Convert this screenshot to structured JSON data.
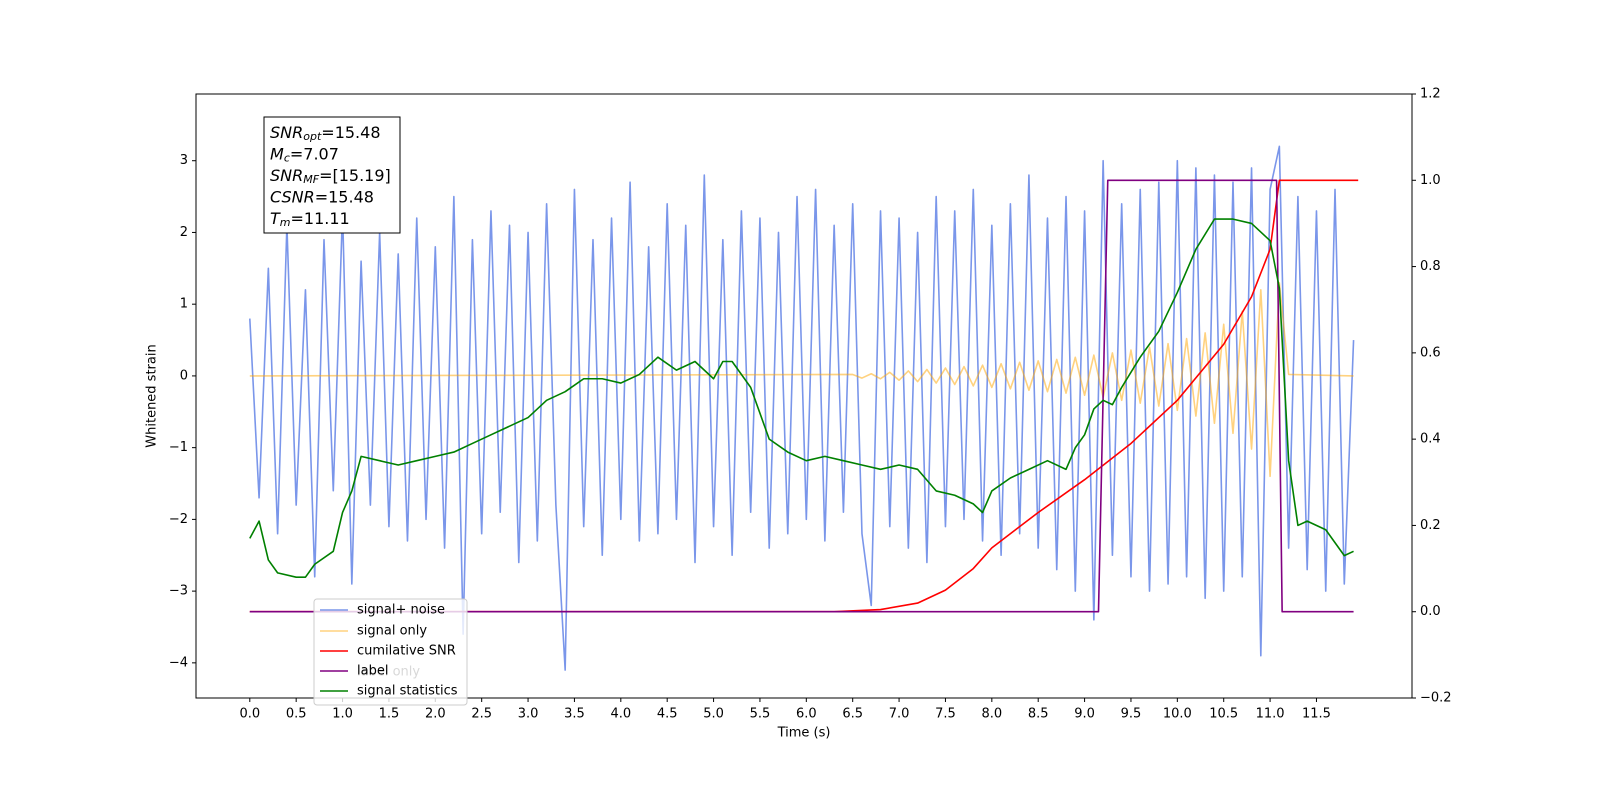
{
  "chart_data": {
    "type": "line",
    "xlabel": "Time (s)",
    "ylabel": "Whitened strain",
    "xlim": [
      -0.58,
      12.53
    ],
    "ylim": [
      -4.49,
      3.93
    ],
    "y2lim": [
      -0.2,
      1.2
    ],
    "xticks": [
      {
        "value": 0,
        "label": "0.0"
      },
      {
        "value": 0.5,
        "label": "0.5"
      },
      {
        "value": 1,
        "label": "1.0"
      },
      {
        "value": 1.5,
        "label": "1.5"
      },
      {
        "value": 2,
        "label": "2.0"
      },
      {
        "value": 2.5,
        "label": "2.5"
      },
      {
        "value": 3,
        "label": "3.0"
      },
      {
        "value": 3.5,
        "label": "3.5"
      },
      {
        "value": 4,
        "label": "4.0"
      },
      {
        "value": 4.5,
        "label": "4.5"
      },
      {
        "value": 5,
        "label": "5.0"
      },
      {
        "value": 5.5,
        "label": "5.5"
      },
      {
        "value": 6,
        "label": "6.0"
      },
      {
        "value": 6.5,
        "label": "6.5"
      },
      {
        "value": 7,
        "label": "7.0"
      },
      {
        "value": 7.5,
        "label": "7.5"
      },
      {
        "value": 8,
        "label": "8.0"
      },
      {
        "value": 8.5,
        "label": "8.5"
      },
      {
        "value": 9,
        "label": "9.0"
      },
      {
        "value": 9.5,
        "label": "9.5"
      },
      {
        "value": 10,
        "label": "10.0"
      },
      {
        "value": 10.5,
        "label": "10.5"
      },
      {
        "value": 11,
        "label": "11.0"
      },
      {
        "value": 11.5,
        "label": "11.5"
      }
    ],
    "yticks": [
      {
        "value": -4,
        "label": "−4"
      },
      {
        "value": -3,
        "label": "−3"
      },
      {
        "value": -2,
        "label": "−2"
      },
      {
        "value": -1,
        "label": "−1"
      },
      0,
      1,
      2,
      3
    ],
    "y2ticks": [
      {
        "value": -0.2,
        "label": "−0.2"
      },
      {
        "value": 0,
        "label": "0.0"
      },
      0.2,
      0.4,
      0.6,
      0.8,
      {
        "value": 1,
        "label": "1.0"
      },
      1.2
    ],
    "annotation": [
      {
        "name": "SNR",
        "sub": "opt",
        "text": "=15.48"
      },
      {
        "name": "M",
        "sub": "c",
        "text": "=7.07"
      },
      {
        "name": "SNR",
        "sub": "MF",
        "text": "=[15.19]"
      },
      {
        "name": "CSNR",
        "sub": "",
        "text": "=15.48"
      },
      {
        "name": "T",
        "sub": "m",
        "text": "=11.11"
      }
    ],
    "hidden_legend_entry": "label only",
    "series": [
      {
        "name": "signal+ noise",
        "color": "#4169e1",
        "alpha": 0.7,
        "axis": "y",
        "x": [
          0,
          0.1,
          0.2,
          0.3,
          0.4,
          0.5,
          0.6,
          0.7,
          0.8,
          0.9,
          1,
          1.1,
          1.2,
          1.3,
          1.4,
          1.5,
          1.6,
          1.7,
          1.8,
          1.9,
          2,
          2.1,
          2.2,
          2.3,
          2.4,
          2.5,
          2.6,
          2.7,
          2.8,
          2.9,
          3,
          3.1,
          3.2,
          3.3,
          3.4,
          3.5,
          3.6,
          3.7,
          3.8,
          3.9,
          4,
          4.1,
          4.2,
          4.3,
          4.4,
          4.5,
          4.6,
          4.7,
          4.8,
          4.9,
          5,
          5.1,
          5.2,
          5.3,
          5.4,
          5.5,
          5.6,
          5.7,
          5.8,
          5.9,
          6,
          6.1,
          6.2,
          6.3,
          6.4,
          6.5,
          6.6,
          6.7,
          6.8,
          6.9,
          7,
          7.1,
          7.2,
          7.3,
          7.4,
          7.5,
          7.6,
          7.7,
          7.8,
          7.9,
          8,
          8.1,
          8.2,
          8.3,
          8.4,
          8.5,
          8.6,
          8.7,
          8.8,
          8.9,
          9,
          9.1,
          9.2,
          9.3,
          9.4,
          9.5,
          9.6,
          9.7,
          9.8,
          9.9,
          10,
          10.1,
          10.2,
          10.3,
          10.4,
          10.5,
          10.6,
          10.7,
          10.8,
          10.9,
          11,
          11.1,
          11.2,
          11.3,
          11.4,
          11.5,
          11.6,
          11.7,
          11.8,
          11.9
        ],
        "values": [
          0.8,
          -1.7,
          1.5,
          -2.2,
          2.1,
          -1.8,
          1.2,
          -2.8,
          1.9,
          -1.6,
          2.3,
          -2.9,
          1.6,
          -1.8,
          2.0,
          -2.1,
          1.7,
          -2.3,
          2.2,
          -2.0,
          1.8,
          -2.4,
          2.5,
          -3.6,
          1.9,
          -2.2,
          2.3,
          -1.9,
          2.1,
          -2.6,
          2.0,
          -2.3,
          2.4,
          -1.8,
          -4.1,
          2.6,
          -2.1,
          1.9,
          -2.5,
          2.2,
          -2.0,
          2.7,
          -2.3,
          1.8,
          -2.2,
          2.4,
          -2.0,
          2.1,
          -2.6,
          2.8,
          -2.1,
          1.9,
          -2.5,
          2.3,
          -1.9,
          2.2,
          -2.4,
          2.0,
          -2.2,
          2.5,
          -2.0,
          2.6,
          -2.3,
          2.1,
          -1.9,
          2.4,
          -2.2,
          -3.2,
          2.3,
          -2.1,
          2.2,
          -2.4,
          2.0,
          -2.6,
          2.5,
          -2.1,
          2.3,
          -2.0,
          2.6,
          -2.3,
          2.1,
          -2.5,
          2.4,
          -2.2,
          2.8,
          -2.4,
          2.2,
          -2.7,
          2.5,
          -3.0,
          2.3,
          -3.4,
          3.0,
          -2.5,
          2.4,
          -2.8,
          2.6,
          -3.0,
          2.7,
          -2.9,
          3.0,
          -2.8,
          2.9,
          -3.1,
          2.8,
          -3.0,
          2.7,
          -2.8,
          2.9,
          -3.9,
          2.6,
          3.2,
          -2.4,
          2.5,
          -2.7,
          2.3,
          -3.0,
          2.6,
          -2.9,
          0.5
        ]
      },
      {
        "name": "signal only",
        "color": "#ffa500",
        "alpha": 0.5,
        "axis": "y",
        "x": [
          0,
          6.5,
          6.6,
          6.7,
          6.8,
          6.9,
          7,
          7.1,
          7.2,
          7.3,
          7.4,
          7.5,
          7.6,
          7.7,
          7.8,
          7.9,
          8,
          8.1,
          8.2,
          8.3,
          8.4,
          8.5,
          8.6,
          8.7,
          8.8,
          8.9,
          9,
          9.1,
          9.2,
          9.3,
          9.4,
          9.5,
          9.6,
          9.7,
          9.8,
          9.9,
          10,
          10.1,
          10.2,
          10.3,
          10.4,
          10.5,
          10.6,
          10.7,
          10.8,
          10.9,
          11,
          11.1,
          11.2,
          11.9
        ],
        "values": [
          0,
          0.02,
          -0.03,
          0.03,
          -0.04,
          0.05,
          -0.06,
          0.07,
          -0.08,
          0.09,
          -0.1,
          0.11,
          -0.12,
          0.13,
          -0.14,
          0.15,
          -0.16,
          0.17,
          -0.18,
          0.19,
          -0.2,
          0.21,
          -0.22,
          0.23,
          -0.24,
          0.26,
          -0.27,
          0.29,
          -0.3,
          0.32,
          -0.34,
          0.36,
          -0.38,
          0.4,
          -0.42,
          0.45,
          -0.48,
          0.52,
          -0.56,
          0.6,
          -0.66,
          0.72,
          -0.8,
          0.9,
          -1.02,
          1.2,
          -1.4,
          1.3,
          0.02,
          0
        ]
      },
      {
        "name": "cumilative SNR",
        "color": "#ff0000",
        "axis": "y2",
        "x": [
          0,
          6.3,
          6.8,
          7.2,
          7.5,
          7.8,
          8.0,
          8.5,
          9.0,
          9.5,
          10.0,
          10.5,
          10.8,
          11.0,
          11.1,
          11.95
        ],
        "values": [
          0,
          0,
          0.005,
          0.02,
          0.05,
          0.1,
          0.148,
          0.23,
          0.306,
          0.39,
          0.49,
          0.62,
          0.73,
          0.84,
          1.0,
          1.0
        ]
      },
      {
        "name": "label",
        "color": "#800080",
        "axis": "y2",
        "x": [
          0,
          9.15,
          9.25,
          11.07,
          11.13,
          11.9
        ],
        "values": [
          0,
          0,
          1,
          1,
          0,
          0
        ]
      },
      {
        "name": "signal statistics",
        "color": "#008000",
        "axis": "y2",
        "x": [
          0,
          0.1,
          0.2,
          0.3,
          0.5,
          0.6,
          0.7,
          0.9,
          1.0,
          1.1,
          1.2,
          1.4,
          1.6,
          1.8,
          2.0,
          2.2,
          2.4,
          2.6,
          2.8,
          3.0,
          3.2,
          3.4,
          3.6,
          3.8,
          4.0,
          4.2,
          4.4,
          4.6,
          4.8,
          5.0,
          5.1,
          5.2,
          5.4,
          5.6,
          5.8,
          6.0,
          6.2,
          6.4,
          6.6,
          6.8,
          7.0,
          7.2,
          7.4,
          7.6,
          7.8,
          7.9,
          8.0,
          8.2,
          8.4,
          8.6,
          8.8,
          8.9,
          9.0,
          9.1,
          9.2,
          9.3,
          9.4,
          9.6,
          9.8,
          10.0,
          10.2,
          10.4,
          10.6,
          10.8,
          11.0,
          11.1,
          11.2,
          11.3,
          11.4,
          11.6,
          11.8,
          11.9
        ],
        "values": [
          0.17,
          0.21,
          0.12,
          0.09,
          0.08,
          0.08,
          0.11,
          0.14,
          0.23,
          0.28,
          0.36,
          0.35,
          0.34,
          0.35,
          0.36,
          0.37,
          0.39,
          0.41,
          0.43,
          0.45,
          0.49,
          0.51,
          0.54,
          0.54,
          0.53,
          0.55,
          0.59,
          0.56,
          0.58,
          0.54,
          0.58,
          0.58,
          0.52,
          0.4,
          0.37,
          0.35,
          0.36,
          0.35,
          0.34,
          0.33,
          0.34,
          0.33,
          0.28,
          0.27,
          0.25,
          0.23,
          0.28,
          0.31,
          0.33,
          0.35,
          0.33,
          0.38,
          0.41,
          0.47,
          0.49,
          0.48,
          0.52,
          0.59,
          0.65,
          0.74,
          0.84,
          0.91,
          0.91,
          0.9,
          0.86,
          0.75,
          0.35,
          0.2,
          0.21,
          0.19,
          0.13,
          0.14
        ]
      }
    ]
  }
}
